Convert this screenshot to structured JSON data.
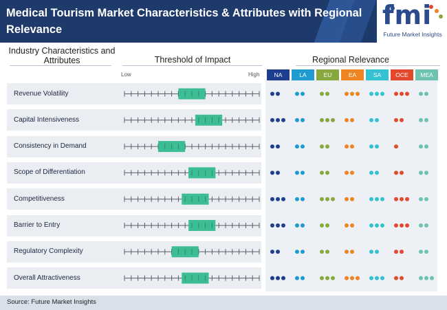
{
  "title": "Medical Tourism Market Characteristics & Attributes with Regional Relevance",
  "logo": {
    "text": "fmi",
    "subtitle": "Future Market Insights"
  },
  "headers": {
    "attributes": "Industry Characteristics and Attributes",
    "impact": "Threshold of Impact",
    "regional": "Regional Relevance"
  },
  "axis": {
    "low": "Low",
    "high": "High"
  },
  "source": "Source: Future Market Insights",
  "colors": {
    "header_bg": "#1d3a6b",
    "impact_box": "#3dbd94",
    "NA": "#1e3f8f",
    "LA": "#1f9bd2",
    "EU": "#86a83f",
    "EA": "#ee8422",
    "SA": "#34c2d3",
    "OCE": "#e3492d",
    "MEA": "#6dc3b0"
  },
  "chart_data": {
    "type": "table",
    "title": "Medical Tourism Market Characteristics & Attributes with Regional Relevance",
    "scale": {
      "min": 0,
      "max": 20,
      "unit": "tick",
      "low_label": "Low",
      "high_label": "High"
    },
    "regions": [
      "NA",
      "LA",
      "EU",
      "EA",
      "SA",
      "OCE",
      "MEA"
    ],
    "rows": [
      {
        "label": "Revenue Volatility",
        "impact_range": [
          8,
          12
        ],
        "relevance": [
          2,
          2,
          2,
          3,
          3,
          3,
          2
        ]
      },
      {
        "label": "Capital Intensiveness",
        "impact_range": [
          10.5,
          14.5
        ],
        "relevance": [
          3,
          2,
          3,
          2,
          2,
          2,
          2
        ]
      },
      {
        "label": "Consistency in Demand",
        "impact_range": [
          5,
          9
        ],
        "relevance": [
          2,
          2,
          2,
          2,
          2,
          1,
          2
        ]
      },
      {
        "label": "Scope of Differentiation",
        "impact_range": [
          9.5,
          13.5
        ],
        "relevance": [
          2,
          2,
          2,
          2,
          2,
          2,
          2
        ]
      },
      {
        "label": "Competitiveness",
        "impact_range": [
          8.5,
          12.5
        ],
        "relevance": [
          3,
          2,
          3,
          2,
          3,
          3,
          2
        ]
      },
      {
        "label": "Barrier to Entry",
        "impact_range": [
          9.5,
          13.5
        ],
        "relevance": [
          3,
          2,
          2,
          2,
          3,
          3,
          2
        ]
      },
      {
        "label": "Regulatory Complexity",
        "impact_range": [
          7,
          11
        ],
        "relevance": [
          2,
          2,
          2,
          2,
          2,
          2,
          2
        ]
      },
      {
        "label": "Overall Attractiveness",
        "impact_range": [
          8.5,
          12.5
        ],
        "relevance": [
          3,
          2,
          3,
          3,
          3,
          2,
          3
        ]
      }
    ]
  }
}
